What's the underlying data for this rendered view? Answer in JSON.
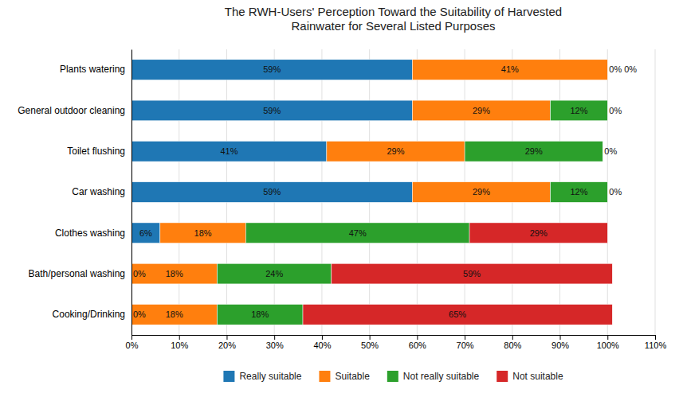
{
  "chart_data": {
    "type": "bar",
    "orientation": "horizontal",
    "stacked": true,
    "title": "The RWH-Users' Perception Toward the Suitability of Harvested\nRainwater for Several Listed Purposes",
    "categories": [
      "Cooking/Drinking",
      "Bath/personal washing",
      "Clothes washing",
      "Car washing",
      "Toilet flushing",
      "General outdoor cleaning",
      "Plants watering"
    ],
    "series": [
      {
        "name": "Really suitable",
        "values": [
          0,
          0,
          6,
          59,
          41,
          59,
          59
        ],
        "value_labels": [
          "0%",
          "0%",
          "6%",
          "59%",
          "41%",
          "59%",
          "59%"
        ]
      },
      {
        "name": "Suitable",
        "values": [
          18,
          18,
          18,
          29,
          29,
          29,
          41
        ],
        "value_labels": [
          "18%",
          "18%",
          "18%",
          "29%",
          "29%",
          "29%",
          "41%"
        ]
      },
      {
        "name": "Not really suitable",
        "values": [
          18,
          24,
          47,
          12,
          29,
          12,
          0
        ],
        "value_labels": [
          "18%",
          "24%",
          "47%",
          "12%",
          "29%",
          "12%",
          "0%"
        ]
      },
      {
        "name": "Not suitable",
        "values": [
          65,
          59,
          29,
          0,
          0,
          0,
          0
        ],
        "value_labels": [
          "65%",
          "59%",
          "29%",
          "0%",
          "0%",
          "0%",
          "0%"
        ]
      }
    ],
    "xlim": [
      0,
      110
    ],
    "xticks": [
      {
        "value": 0,
        "label": "0%"
      },
      {
        "value": 10,
        "label": "10%"
      },
      {
        "value": 20,
        "label": "20%"
      },
      {
        "value": 30,
        "label": "30%"
      },
      {
        "value": 40,
        "label": "40%"
      },
      {
        "value": 50,
        "label": "50%"
      },
      {
        "value": 60,
        "label": "60%"
      },
      {
        "value": 70,
        "label": "70%"
      },
      {
        "value": 80,
        "label": "80%"
      },
      {
        "value": 90,
        "label": "90%"
      },
      {
        "value": 100,
        "label": "100%"
      },
      {
        "value": 110,
        "label": "110%"
      }
    ],
    "grid": true,
    "data_labels": true,
    "legend": "bottom"
  }
}
